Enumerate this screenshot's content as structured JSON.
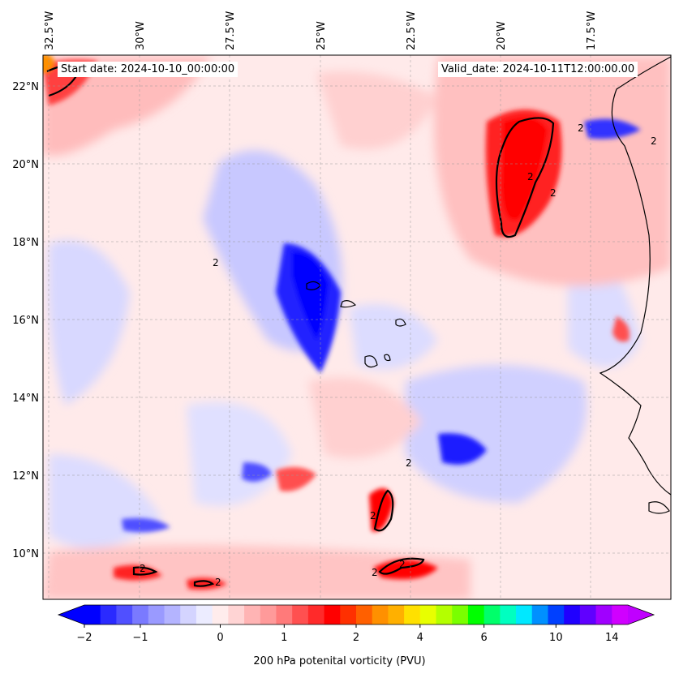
{
  "map": {
    "start_label": "Start date: 2024-10-10_00:00:00",
    "valid_label": "Valid_date: 2024-10-11T12:00:00.00",
    "lon_ticks": [
      "32.5°W",
      "30°W",
      "27.5°W",
      "25°W",
      "22.5°W",
      "20°W",
      "17.5°W"
    ],
    "lat_ticks": [
      "22°N",
      "20°N",
      "18°N",
      "16°N",
      "14°N",
      "12°N",
      "10°N"
    ],
    "contour_level_label": "2",
    "extent": {
      "lon_min": -33,
      "lon_max": -15.2,
      "lat_min": 8.9,
      "lat_max": 22.8
    }
  },
  "colorbar": {
    "label": "200 hPa potenital vorticity (PVU)",
    "tick_labels": [
      "−2",
      "−1",
      "0",
      "1",
      "2",
      "4",
      "6",
      "10",
      "14"
    ],
    "colors": [
      "#0000ff",
      "#2a2aff",
      "#5050ff",
      "#7a7aff",
      "#9a9aff",
      "#b4b4ff",
      "#d4d4ff",
      "#ececff",
      "#ffecec",
      "#ffd4d4",
      "#ffb4b4",
      "#ff9a9a",
      "#ff7a7a",
      "#ff5050",
      "#ff2a2a",
      "#ff0000",
      "#ff3000",
      "#ff6000",
      "#ff9000",
      "#ffb000",
      "#ffe000",
      "#e8ff00",
      "#b4ff00",
      "#7aff00",
      "#00ff00",
      "#00ff6a",
      "#00ffc0",
      "#00e8ff",
      "#0090ff",
      "#0040ff",
      "#2000ff",
      "#6000ff",
      "#a000ff",
      "#d000ff"
    ],
    "under_color": "#0000ff",
    "over_color": "#c000ff"
  }
}
